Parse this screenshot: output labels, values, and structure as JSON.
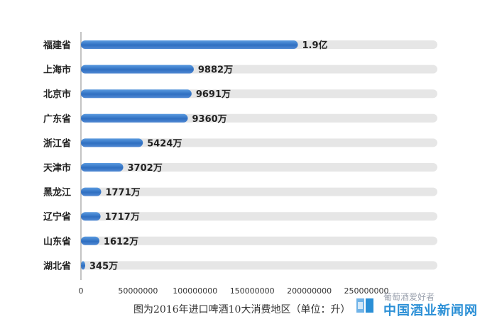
{
  "chart_data": {
    "type": "bar",
    "orientation": "horizontal",
    "categories": [
      "福建省",
      "上海市",
      "北京市",
      "广东省",
      "浙江省",
      "天津市",
      "黑龙江",
      "辽宁省",
      "山东省",
      "湖北省"
    ],
    "values": [
      190000000,
      98820000,
      96910000,
      93600000,
      54240000,
      37020000,
      17710000,
      17170000,
      16120000,
      3450000
    ],
    "data_labels": [
      "1.9亿",
      "9882万",
      "9691万",
      "9360万",
      "5424万",
      "3702万",
      "1771万",
      "1717万",
      "1612万",
      "345万"
    ],
    "xlim": [
      0,
      250000000
    ],
    "xticks": [
      "0",
      "50000000",
      "100000000",
      "150000000",
      "200000000",
      "250000000"
    ],
    "grid": false,
    "colors": {
      "bar": "#3a7fd0",
      "track": "#e6e6e6"
    }
  },
  "caption": "图为2016年进口啤酒10大消费地区（单位：升）",
  "watermark": {
    "small": "葡萄酒爱好者",
    "big": "中国酒业新闻网"
  }
}
